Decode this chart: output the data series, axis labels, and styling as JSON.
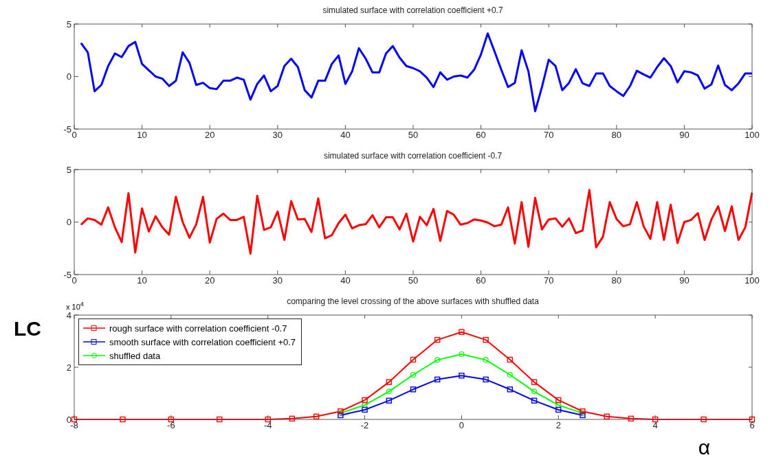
{
  "chart_data": [
    {
      "type": "line",
      "title": "simulated surface with correlation coefficient +0.7",
      "x": [
        1,
        2,
        3,
        4,
        5,
        6,
        7,
        8,
        9,
        10,
        11,
        12,
        13,
        14,
        15,
        16,
        17,
        18,
        19,
        20,
        21,
        22,
        23,
        24,
        25,
        26,
        27,
        28,
        29,
        30,
        31,
        32,
        33,
        34,
        35,
        36,
        37,
        38,
        39,
        40,
        41,
        42,
        43,
        44,
        45,
        46,
        47,
        48,
        49,
        50,
        51,
        52,
        53,
        54,
        55,
        56,
        57,
        58,
        59,
        60,
        61,
        62,
        63,
        64,
        65,
        66,
        67,
        68,
        69,
        70,
        71,
        72,
        73,
        74,
        75,
        76,
        77,
        78,
        79,
        80,
        81,
        82,
        83,
        84,
        85,
        86,
        87,
        88,
        89,
        90,
        91,
        92,
        93,
        94,
        95,
        96,
        97,
        98,
        99,
        100
      ],
      "series": [
        {
          "color": "#0000ff",
          "values": [
            3.2,
            2.3,
            -1.4,
            -0.8,
            1.0,
            2.2,
            1.85,
            2.9,
            3.3,
            1.2,
            0.6,
            0.0,
            -0.2,
            -0.9,
            -0.4,
            2.3,
            1.3,
            -0.8,
            -0.6,
            -1.1,
            -1.2,
            -0.4,
            -0.4,
            -0.1,
            -0.3,
            -2.2,
            -0.7,
            0.1,
            -1.4,
            -0.9,
            1.0,
            1.7,
            0.9,
            -1.3,
            -2.0,
            -0.4,
            -0.4,
            1.2,
            2.0,
            -0.7,
            0.5,
            2.7,
            1.7,
            0.4,
            0.4,
            2.2,
            2.9,
            1.8,
            1.0,
            0.8,
            0.5,
            -0.1,
            -1.0,
            0.4,
            -0.3,
            0.0,
            0.1,
            -0.1,
            0.65,
            2.1,
            4.1,
            2.4,
            0.65,
            -1.0,
            -0.6,
            2.5,
            0.5,
            -3.3,
            -1.0,
            1.6,
            1.0,
            -1.3,
            -0.6,
            0.7,
            -0.65,
            -0.9,
            0.3,
            0.3,
            -0.9,
            -1.4,
            -1.85,
            -0.9,
            0.55,
            0.2,
            -0.1,
            0.9,
            1.75,
            1.0,
            -0.55,
            0.5,
            0.4,
            0.1,
            -1.15,
            -0.75,
            1.05,
            -0.8,
            -1.3,
            -0.65,
            0.3,
            0.3
          ]
        }
      ],
      "xlim": [
        0,
        100
      ],
      "xticks": [
        0,
        10,
        20,
        30,
        40,
        50,
        60,
        70,
        80,
        90,
        100
      ],
      "ylim": [
        -5,
        5
      ],
      "yticks": [
        -5,
        0,
        5
      ],
      "grid": false,
      "legend": false,
      "marker": "none",
      "line_style": "solid"
    },
    {
      "type": "line",
      "title": "simulated surface with correlation coefficient -0.7",
      "x": [
        1,
        2,
        3,
        4,
        5,
        6,
        7,
        8,
        9,
        10,
        11,
        12,
        13,
        14,
        15,
        16,
        17,
        18,
        19,
        20,
        21,
        22,
        23,
        24,
        25,
        26,
        27,
        28,
        29,
        30,
        31,
        32,
        33,
        34,
        35,
        36,
        37,
        38,
        39,
        40,
        41,
        42,
        43,
        44,
        45,
        46,
        47,
        48,
        49,
        50,
        51,
        52,
        53,
        54,
        55,
        56,
        57,
        58,
        59,
        60,
        61,
        62,
        63,
        64,
        65,
        66,
        67,
        68,
        69,
        70,
        71,
        72,
        73,
        74,
        75,
        76,
        77,
        78,
        79,
        80,
        81,
        82,
        83,
        84,
        85,
        86,
        87,
        88,
        89,
        90,
        91,
        92,
        93,
        94,
        95,
        96,
        97,
        98,
        99,
        100
      ],
      "series": [
        {
          "color": "#ff0000",
          "values": [
            -0.25,
            0.35,
            0.2,
            -0.25,
            1.4,
            -0.5,
            -1.9,
            2.75,
            -2.9,
            1.3,
            -0.9,
            0.55,
            -0.5,
            -1.2,
            2.4,
            0.0,
            -1.5,
            -0.2,
            2.4,
            -1.95,
            0.3,
            0.8,
            0.2,
            0.2,
            0.5,
            -3.0,
            2.5,
            -0.75,
            -0.5,
            1.0,
            -1.7,
            2.0,
            0.25,
            0.3,
            -0.95,
            2.25,
            -1.55,
            -1.25,
            -0.1,
            0.7,
            -0.6,
            -0.3,
            -0.2,
            0.65,
            -0.5,
            0.45,
            0.45,
            -0.7,
            0.8,
            -1.85,
            0.5,
            -0.3,
            1.25,
            -1.8,
            1.05,
            0.7,
            -0.25,
            -0.1,
            0.25,
            0.15,
            -0.05,
            -0.4,
            -0.25,
            1.4,
            -2.05,
            1.9,
            -2.35,
            2.3,
            -0.7,
            0.25,
            0.35,
            -0.45,
            0.35,
            -1.05,
            -0.8,
            3.05,
            -2.4,
            -1.4,
            1.9,
            0.3,
            -0.4,
            -0.2,
            1.9,
            -0.4,
            -1.6,
            1.9,
            -1.7,
            1.65,
            -2.0,
            0.0,
            0.2,
            0.85,
            -1.7,
            0.25,
            1.5,
            -0.85,
            1.5,
            -1.7,
            -0.5,
            2.8
          ]
        }
      ],
      "xlim": [
        0,
        100
      ],
      "xticks": [
        0,
        10,
        20,
        30,
        40,
        50,
        60,
        70,
        80,
        90,
        100
      ],
      "ylim": [
        -5,
        5
      ],
      "yticks": [
        -5,
        0,
        5
      ],
      "grid": false,
      "legend": false,
      "marker": "none",
      "line_style": "solid"
    },
    {
      "type": "line",
      "title": "comparing the level crossing of the above surfaces with  shuffled data",
      "xlabel": "α",
      "ylabel": "LC",
      "annotations": [
        "x 10$^{4}$"
      ],
      "series": [
        {
          "name": "rough surface with correlation coefficient -0.7",
          "color": "#ff0000",
          "marker": "square",
          "x": [
            -8,
            -7,
            -6,
            -5,
            -4,
            -3.5,
            -3,
            -2.5,
            -2,
            -1.5,
            -1,
            -0.5,
            0,
            0.5,
            1,
            1.5,
            2,
            2.5,
            3,
            3.5,
            4,
            5,
            6
          ],
          "values": [
            0,
            0,
            0,
            0,
            0,
            0.03,
            0.11,
            0.31,
            0.74,
            1.43,
            2.29,
            3.05,
            3.35,
            3.05,
            2.29,
            1.43,
            0.74,
            0.31,
            0.11,
            0.03,
            0,
            0,
            0
          ]
        },
        {
          "name": "smooth surface with correlation coefficient +0.7",
          "color": "#0000ff",
          "marker": "square",
          "x": [
            -2.5,
            -2,
            -1.5,
            -1,
            -0.5,
            0,
            0.5,
            1,
            1.5,
            2,
            2.5
          ],
          "values": [
            0.16,
            0.37,
            0.72,
            1.15,
            1.53,
            1.68,
            1.53,
            1.15,
            0.72,
            0.37,
            0.16
          ]
        },
        {
          "name": "shuffled data",
          "color": "#00ff00",
          "marker": "circle",
          "x": [
            -2.5,
            -2,
            -1.5,
            -1,
            -0.5,
            0,
            0.5,
            1,
            1.5,
            2,
            2.5
          ],
          "values": [
            0.24,
            0.55,
            1.07,
            1.71,
            2.28,
            2.5,
            2.28,
            1.71,
            1.07,
            0.55,
            0.24
          ]
        }
      ],
      "xlim": [
        -8,
        6
      ],
      "xticks": [
        -8,
        -6,
        -4,
        -2,
        0,
        2,
        4,
        6
      ],
      "ylim": [
        0,
        4
      ],
      "yticks": [
        0,
        2,
        4
      ],
      "grid": false,
      "legend": "top left",
      "line_style": "solid"
    }
  ]
}
